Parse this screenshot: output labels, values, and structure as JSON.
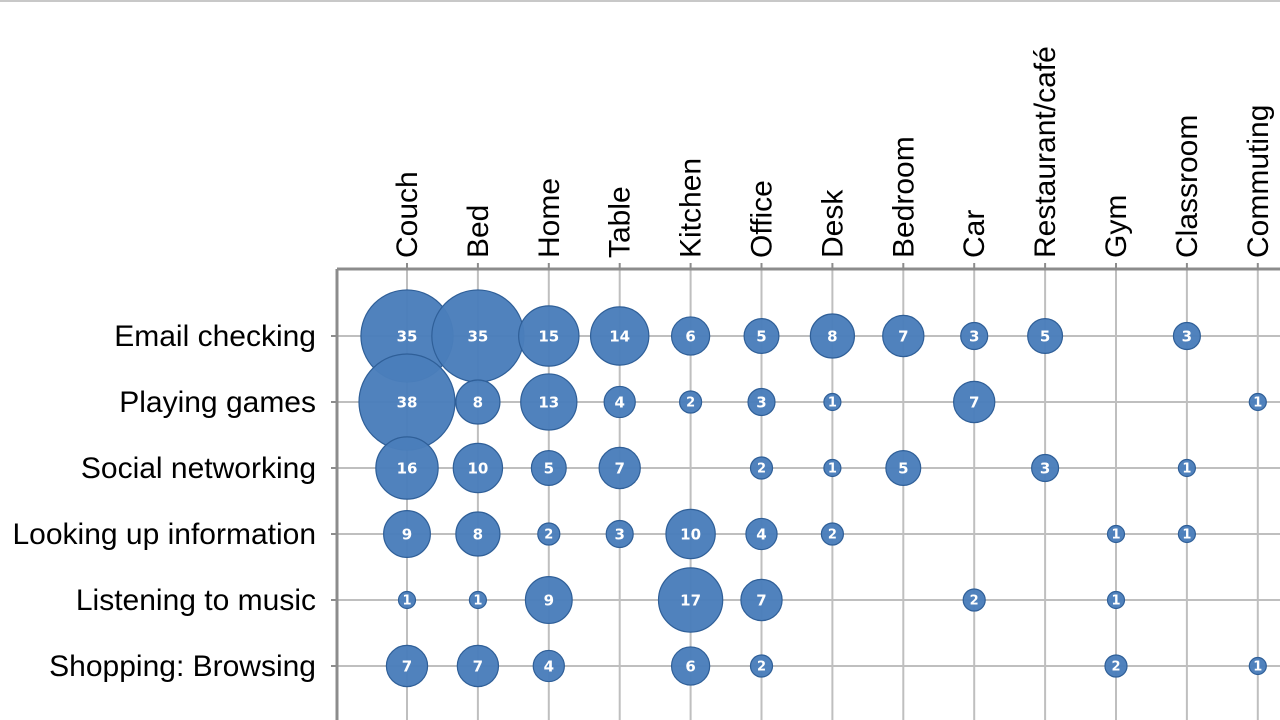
{
  "chart_data": {
    "type": "bubble",
    "title": "",
    "columns": [
      "Couch",
      "Bed",
      "Home",
      "Table",
      "Kitchen",
      "Office",
      "Desk",
      "Bedroom",
      "Car",
      "Restaurant/café",
      "Gym",
      "Classroom",
      "Commuting"
    ],
    "rows": [
      {
        "label": "Email checking",
        "values": [
          35,
          35,
          15,
          14,
          6,
          5,
          8,
          7,
          3,
          5,
          null,
          3,
          null
        ]
      },
      {
        "label": "Playing games",
        "values": [
          38,
          8,
          13,
          4,
          2,
          3,
          1,
          null,
          7,
          null,
          null,
          null,
          1
        ]
      },
      {
        "label": "Social networking",
        "values": [
          16,
          10,
          5,
          7,
          null,
          2,
          1,
          5,
          null,
          3,
          null,
          1,
          null
        ]
      },
      {
        "label": "Looking up information",
        "values": [
          9,
          8,
          2,
          3,
          10,
          4,
          2,
          null,
          null,
          null,
          1,
          1,
          null
        ]
      },
      {
        "label": "Listening to music",
        "values": [
          1,
          1,
          9,
          null,
          17,
          7,
          null,
          null,
          2,
          null,
          1,
          null,
          null
        ]
      },
      {
        "label": "Shopping: Browsing",
        "values": [
          7,
          7,
          4,
          null,
          6,
          2,
          null,
          null,
          null,
          null,
          2,
          null,
          1
        ]
      },
      {
        "label": "",
        "values": [
          null,
          null,
          null,
          null,
          null,
          null,
          null,
          null,
          null,
          null,
          null,
          null,
          null
        ]
      }
    ],
    "colors": {
      "bubble_fill": "#4a7ebb",
      "bubble_stroke": "#2f5f98",
      "grid": "#bfbfbf",
      "axis": "#8c8c8c"
    }
  }
}
